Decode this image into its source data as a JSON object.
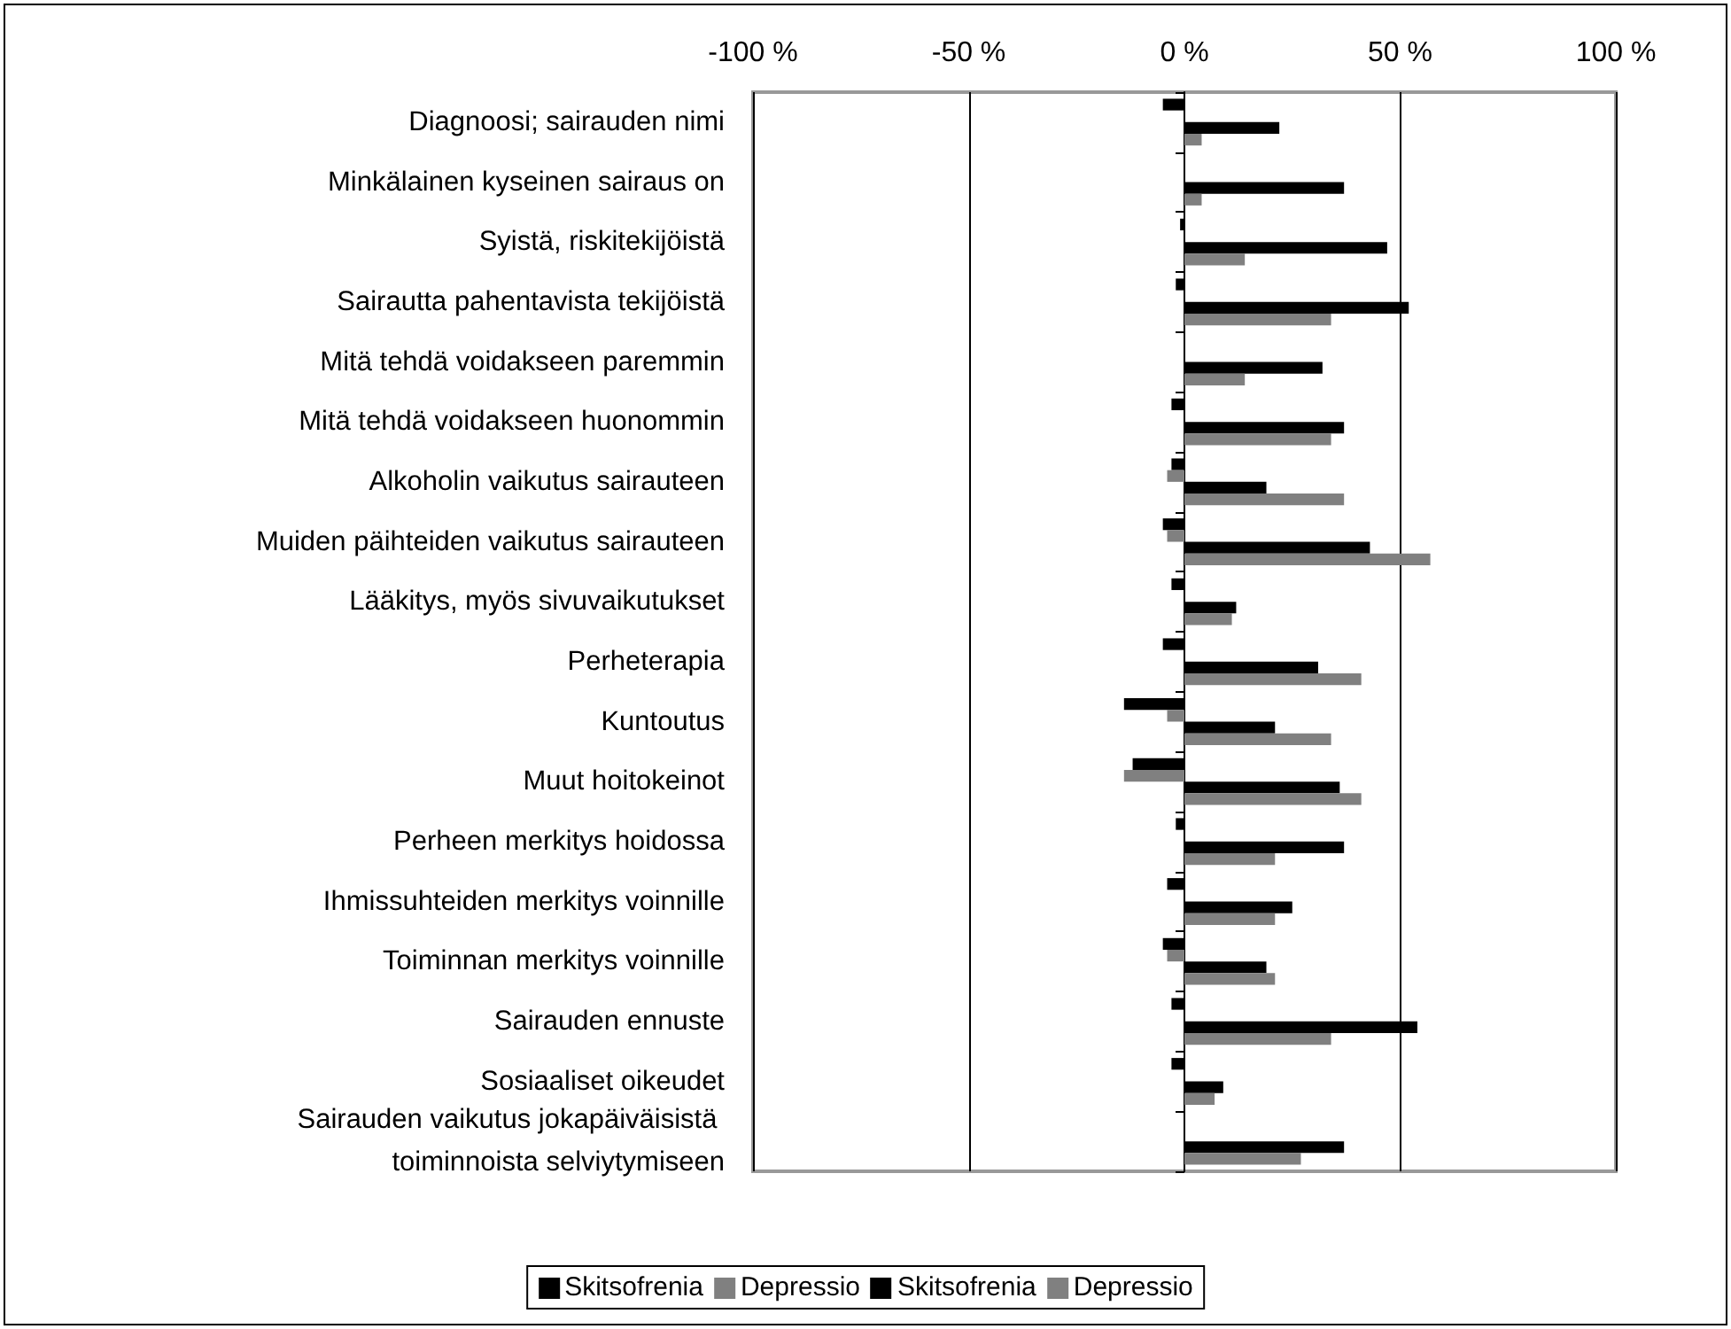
{
  "chart_data": {
    "type": "bar",
    "orientation": "horizontal",
    "categories": [
      "Diagnoosi; sairauden nimi",
      "Minkälainen kyseinen sairaus on",
      "Syistä, riskitekijöistä",
      "Sairautta pahentavista tekijöistä",
      "Mitä tehdä voidakseen paremmin",
      "Mitä tehdä voidakseen huonommin",
      "Alkoholin vaikutus sairauteen",
      "Muiden päihteiden vaikutus sairauteen",
      "Lääkitys, myös sivuvaikutukset",
      "Perheterapia",
      "Kuntoutus",
      "Muut hoitokeinot",
      "Perheen merkitys hoidossa",
      "Ihmissuhteiden merkitys voinnille",
      "Toiminnan merkitys voinnille",
      "Sairauden ennuste",
      "Sosiaaliset oikeudet",
      "Sairauden vaikutus jokapäiväisistä toiminnoista selviytymiseen"
    ],
    "series": [
      {
        "name": "Skitsofrenia",
        "color": "#000000",
        "values": [
          -5,
          null,
          -1,
          -2,
          null,
          -3,
          -3,
          -5,
          -3,
          -5,
          -14,
          -12,
          -2,
          -4,
          -5,
          -3,
          -3,
          null
        ]
      },
      {
        "name": "Depressio",
        "color": "#808080",
        "values": [
          null,
          null,
          null,
          null,
          null,
          null,
          -4,
          -4,
          null,
          null,
          -4,
          -14,
          null,
          null,
          -4,
          null,
          null,
          null
        ]
      },
      {
        "name": "Skitsofrenia",
        "color": "#000000",
        "values": [
          22,
          37,
          47,
          52,
          32,
          37,
          19,
          43,
          12,
          31,
          21,
          36,
          37,
          25,
          19,
          54,
          9,
          37
        ]
      },
      {
        "name": "Depressio",
        "color": "#808080",
        "values": [
          4,
          4,
          14,
          34,
          14,
          34,
          37,
          57,
          11,
          41,
          34,
          41,
          21,
          21,
          21,
          34,
          7,
          27
        ]
      }
    ],
    "xlim": [
      -100,
      100
    ],
    "xticks": [
      {
        "value": -100,
        "label": "-100 %"
      },
      {
        "value": -50,
        "label": "-50 %"
      },
      {
        "value": 0,
        "label": "0 %"
      },
      {
        "value": 50,
        "label": "50 %"
      },
      {
        "value": 100,
        "label": "100 %"
      }
    ],
    "grid": "x",
    "legend": "bottom"
  }
}
